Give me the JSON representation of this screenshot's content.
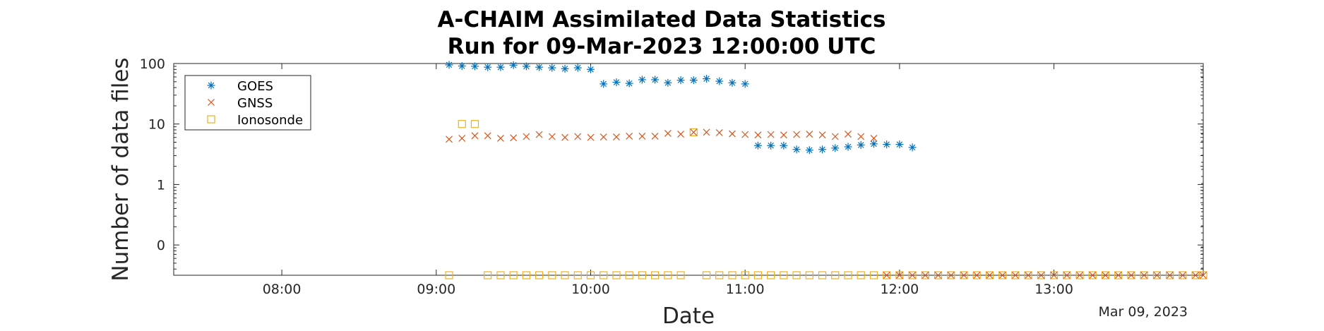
{
  "chart_data": {
    "type": "scatter",
    "title_lines": [
      "A-CHAIM Assimilated Data Statistics",
      "Run for 09-Mar-2023 12:00:00 UTC"
    ],
    "xlabel": "Date",
    "ylabel": "Number of data files",
    "date_note": "Mar 09, 2023",
    "x_unit": "time (HH:MM, UTC)",
    "xlim": [
      "07:18",
      "13:58"
    ],
    "x_ticks": [
      "08:00",
      "09:00",
      "10:00",
      "11:00",
      "12:00",
      "13:00"
    ],
    "y_scale": "log",
    "y_ticks": [
      {
        "label": "100",
        "value": 100
      },
      {
        "label": "10",
        "value": 10
      },
      {
        "label": "1",
        "value": 1
      },
      {
        "label": "0",
        "value": 0.1
      }
    ],
    "ylim": [
      0.0316,
      100
    ],
    "grid": false,
    "legend": "top-left",
    "series": [
      {
        "name": "GOES",
        "marker": "asterisk",
        "color": "#0072BD",
        "points": [
          [
            "09:05",
            95
          ],
          [
            "09:10",
            91
          ],
          [
            "09:15",
            90
          ],
          [
            "09:20",
            87
          ],
          [
            "09:25",
            87
          ],
          [
            "09:30",
            94
          ],
          [
            "09:35",
            90
          ],
          [
            "09:40",
            87
          ],
          [
            "09:45",
            85
          ],
          [
            "09:50",
            82
          ],
          [
            "09:55",
            85
          ],
          [
            "10:00",
            80
          ],
          [
            "10:05",
            46
          ],
          [
            "10:10",
            49
          ],
          [
            "10:15",
            47
          ],
          [
            "10:20",
            54
          ],
          [
            "10:25",
            54
          ],
          [
            "10:30",
            48
          ],
          [
            "10:35",
            53
          ],
          [
            "10:40",
            53
          ],
          [
            "10:45",
            56
          ],
          [
            "10:50",
            51
          ],
          [
            "10:55",
            48
          ],
          [
            "11:00",
            46
          ],
          [
            "11:05",
            4.4
          ],
          [
            "11:10",
            4.4
          ],
          [
            "11:15",
            4.4
          ],
          [
            "11:20",
            3.8
          ],
          [
            "11:25",
            3.7
          ],
          [
            "11:30",
            3.8
          ],
          [
            "11:35",
            4.0
          ],
          [
            "11:40",
            4.2
          ],
          [
            "11:45",
            4.5
          ],
          [
            "11:50",
            4.7
          ],
          [
            "11:55",
            4.6
          ],
          [
            "12:00",
            4.6
          ],
          [
            "12:05",
            4.1
          ]
        ]
      },
      {
        "name": "GNSS",
        "marker": "x",
        "color": "#D95319",
        "points": [
          [
            "09:05",
            5.6
          ],
          [
            "09:10",
            5.8
          ],
          [
            "09:15",
            6.4
          ],
          [
            "09:20",
            6.4
          ],
          [
            "09:25",
            5.8
          ],
          [
            "09:30",
            5.9
          ],
          [
            "09:35",
            6.2
          ],
          [
            "09:40",
            6.7
          ],
          [
            "09:45",
            6.2
          ],
          [
            "09:50",
            6.0
          ],
          [
            "09:55",
            6.2
          ],
          [
            "10:00",
            6.0
          ],
          [
            "10:05",
            6.1
          ],
          [
            "10:10",
            6.1
          ],
          [
            "10:15",
            6.3
          ],
          [
            "10:20",
            6.3
          ],
          [
            "10:25",
            6.3
          ],
          [
            "10:30",
            7.0
          ],
          [
            "10:35",
            6.8
          ],
          [
            "10:40",
            7.3
          ],
          [
            "10:45",
            7.3
          ],
          [
            "10:50",
            7.2
          ],
          [
            "10:55",
            6.9
          ],
          [
            "11:00",
            6.7
          ],
          [
            "11:05",
            6.6
          ],
          [
            "11:10",
            6.7
          ],
          [
            "11:15",
            6.6
          ],
          [
            "11:20",
            6.7
          ],
          [
            "11:25",
            6.8
          ],
          [
            "11:30",
            6.6
          ],
          [
            "11:35",
            6.2
          ],
          [
            "11:40",
            6.8
          ],
          [
            "11:45",
            6.2
          ],
          [
            "11:50",
            5.8
          ],
          [
            "11:55",
            0.0316
          ],
          [
            "12:00",
            0.0316
          ],
          [
            "12:05",
            0.0316
          ],
          [
            "12:10",
            0.0316
          ],
          [
            "12:15",
            0.0316
          ],
          [
            "12:20",
            0.0316
          ],
          [
            "12:25",
            0.0316
          ],
          [
            "12:30",
            0.0316
          ],
          [
            "12:35",
            0.0316
          ],
          [
            "12:40",
            0.0316
          ],
          [
            "12:45",
            0.0316
          ],
          [
            "12:50",
            0.0316
          ],
          [
            "12:55",
            0.0316
          ],
          [
            "13:00",
            0.0316
          ],
          [
            "13:05",
            0.0316
          ],
          [
            "13:10",
            0.0316
          ],
          [
            "13:15",
            0.0316
          ],
          [
            "13:20",
            0.0316
          ],
          [
            "13:25",
            0.0316
          ],
          [
            "13:30",
            0.0316
          ],
          [
            "13:35",
            0.0316
          ],
          [
            "13:40",
            0.0316
          ],
          [
            "13:45",
            0.0316
          ],
          [
            "13:50",
            0.0316
          ],
          [
            "13:55",
            0.0316
          ],
          [
            "14:00",
            0.0316
          ]
        ]
      },
      {
        "name": "Ionosonde",
        "marker": "square",
        "color": "#EDB120",
        "points": [
          [
            "09:05",
            0.0316
          ],
          [
            "09:10",
            10
          ],
          [
            "09:15",
            10
          ],
          [
            "09:20",
            0.0316
          ],
          [
            "09:25",
            0.0316
          ],
          [
            "09:30",
            0.0316
          ],
          [
            "09:35",
            0.0316
          ],
          [
            "09:40",
            0.0316
          ],
          [
            "09:45",
            0.0316
          ],
          [
            "09:50",
            0.0316
          ],
          [
            "09:55",
            0.0316
          ],
          [
            "10:00",
            0.0316
          ],
          [
            "10:05",
            0.0316
          ],
          [
            "10:10",
            0.0316
          ],
          [
            "10:15",
            0.0316
          ],
          [
            "10:20",
            0.0316
          ],
          [
            "10:25",
            0.0316
          ],
          [
            "10:30",
            0.0316
          ],
          [
            "10:35",
            0.0316
          ],
          [
            "10:40",
            7.3
          ],
          [
            "10:45",
            0.0316
          ],
          [
            "10:50",
            0.0316
          ],
          [
            "10:55",
            0.0316
          ],
          [
            "11:00",
            0.0316
          ],
          [
            "11:05",
            0.0316
          ],
          [
            "11:10",
            0.0316
          ],
          [
            "11:15",
            0.0316
          ],
          [
            "11:20",
            0.0316
          ],
          [
            "11:25",
            0.0316
          ],
          [
            "11:30",
            0.0316
          ],
          [
            "11:35",
            0.0316
          ],
          [
            "11:40",
            0.0316
          ],
          [
            "11:45",
            0.0316
          ],
          [
            "11:50",
            0.0316
          ],
          [
            "11:55",
            0.0316
          ],
          [
            "12:00",
            0.0316
          ],
          [
            "12:05",
            0.0316
          ],
          [
            "12:10",
            0.0316
          ],
          [
            "12:15",
            0.0316
          ],
          [
            "12:20",
            0.0316
          ],
          [
            "12:25",
            0.0316
          ],
          [
            "12:30",
            0.0316
          ],
          [
            "12:35",
            0.0316
          ],
          [
            "12:40",
            0.0316
          ],
          [
            "12:45",
            0.0316
          ],
          [
            "12:50",
            0.0316
          ],
          [
            "12:55",
            0.0316
          ],
          [
            "13:00",
            0.0316
          ],
          [
            "13:05",
            0.0316
          ],
          [
            "13:10",
            0.0316
          ],
          [
            "13:15",
            0.0316
          ],
          [
            "13:20",
            0.0316
          ],
          [
            "13:25",
            0.0316
          ],
          [
            "13:30",
            0.0316
          ],
          [
            "13:35",
            0.0316
          ],
          [
            "13:40",
            0.0316
          ],
          [
            "13:45",
            0.0316
          ],
          [
            "13:50",
            0.0316
          ],
          [
            "13:55",
            0.0316
          ],
          [
            "14:00",
            0.0316
          ]
        ]
      }
    ]
  }
}
